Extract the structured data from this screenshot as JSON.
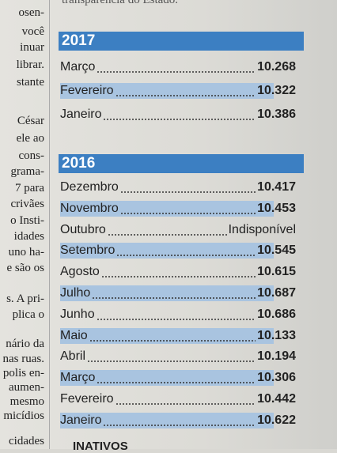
{
  "top_text": "transparência do Estado.",
  "left_column": [
    "osen-",
    "você",
    "inuar",
    "librar.",
    "stante",
    "César",
    "ele ao",
    "cons-",
    "grama-",
    "7 para",
    "crivães",
    "o Insti-",
    "idades",
    "uno ha-",
    "e são os",
    "s. A pri-",
    "plica o",
    "nário da",
    "nas ruas.",
    "polis en-",
    "aumen-",
    "mesmo",
    "micídios",
    "cidades"
  ],
  "sections": [
    {
      "year": "2017",
      "rows": [
        [
          "Março",
          "10.268"
        ],
        [
          "Fevereiro",
          "10.322"
        ],
        [
          "Janeiro",
          "10.386"
        ]
      ]
    },
    {
      "year": "2016",
      "rows": [
        [
          "Dezembro",
          "10.417"
        ],
        [
          "Novembro",
          "10.453"
        ],
        [
          "Outubro",
          "Indisponível"
        ],
        [
          "Setembro",
          "10.545"
        ],
        [
          "Agosto",
          "10.615"
        ],
        [
          "Julho",
          "10.687"
        ],
        [
          "Junho",
          "10.686"
        ],
        [
          "Maio",
          "10.133"
        ],
        [
          "Abril",
          "10.194"
        ],
        [
          "Março",
          "10.306"
        ],
        [
          "Fevereiro",
          "10.442"
        ],
        [
          "Janeiro",
          "10.622"
        ]
      ]
    }
  ],
  "bottom_text": "INATIVOS"
}
